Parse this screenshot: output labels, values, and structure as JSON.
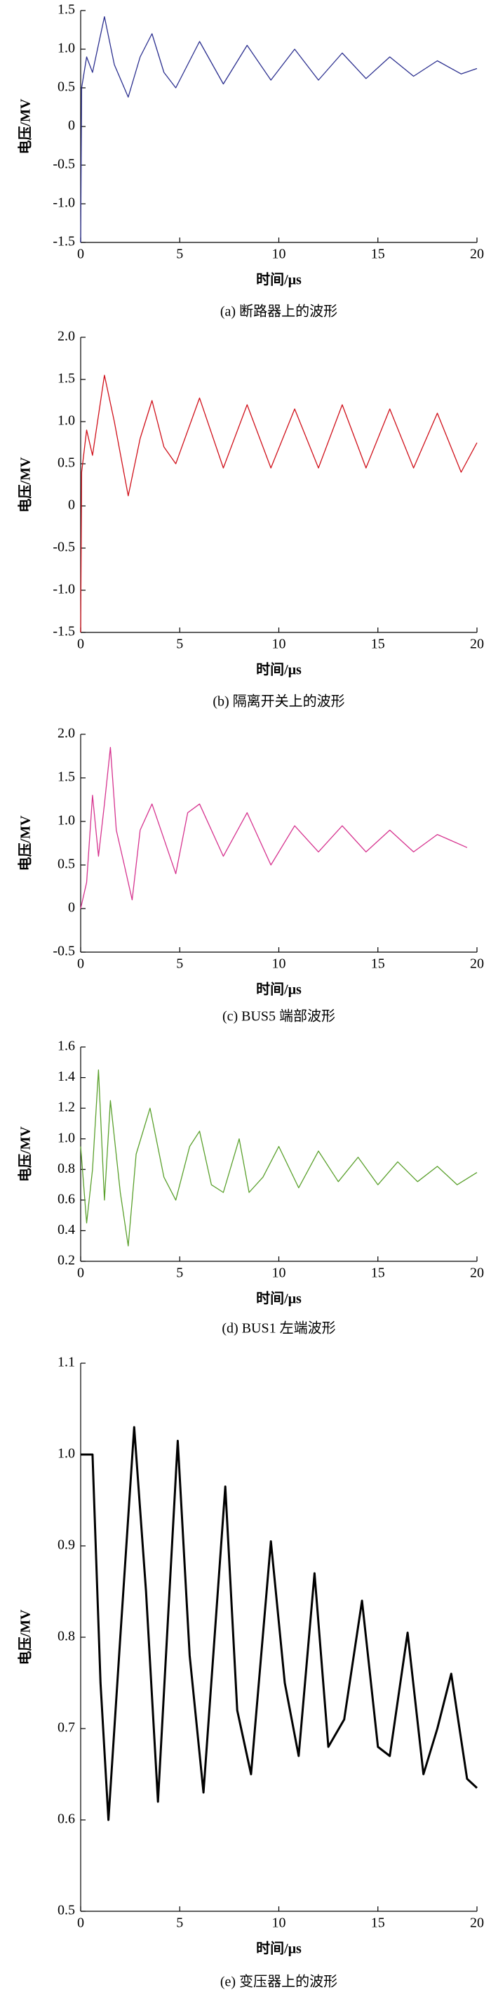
{
  "chart_data": [
    {
      "type": "line",
      "title": "(a) 断路器上的波形",
      "x_label": "时间/μs",
      "y_label": "电压/MV",
      "color": "#2b2f8f",
      "xlim": [
        0,
        20
      ],
      "xticks": [
        0,
        5,
        10,
        15,
        20
      ],
      "ylim": [
        -1.5,
        1.5
      ],
      "yticks": [
        {
          "value": -1.5,
          "label": "-1.5"
        },
        {
          "value": -1.0,
          "label": "-1.0"
        },
        -0.5,
        0,
        0.5,
        {
          "value": 1.0,
          "label": "1.0"
        },
        1.5
      ],
      "x": [
        0,
        0.05,
        0.3,
        0.6,
        1.2,
        1.7,
        2.4,
        3.0,
        3.6,
        4.2,
        4.8,
        6.0,
        7.2,
        8.4,
        9.6,
        10.8,
        12.0,
        13.2,
        14.4,
        15.6,
        16.8,
        18.0,
        19.2,
        20
      ],
      "values": [
        -1.5,
        0.5,
        0.9,
        0.7,
        1.42,
        0.8,
        0.38,
        0.9,
        1.2,
        0.7,
        0.5,
        1.1,
        0.55,
        1.05,
        0.6,
        1.0,
        0.6,
        0.95,
        0.62,
        0.9,
        0.65,
        0.85,
        0.68,
        0.75
      ]
    },
    {
      "type": "line",
      "title": "(b) 隔离开关上的波形",
      "x_label": "时间/μs",
      "y_label": "电压/MV",
      "color": "#d0101a",
      "xlim": [
        0,
        20
      ],
      "xticks": [
        0,
        5,
        10,
        15,
        20
      ],
      "ylim": [
        -1.5,
        2.0
      ],
      "yticks": [
        {
          "value": -1.5,
          "label": "-1.5"
        },
        {
          "value": -1.0,
          "label": "-1.0"
        },
        -0.5,
        0,
        0.5,
        {
          "value": 1.0,
          "label": "1.0"
        },
        1.5,
        {
          "value": 2.0,
          "label": "2.0"
        }
      ],
      "x": [
        0,
        0.05,
        0.3,
        0.6,
        1.2,
        1.7,
        2.4,
        3.0,
        3.6,
        4.2,
        4.8,
        6.0,
        7.2,
        8.4,
        9.6,
        10.8,
        12.0,
        13.2,
        14.4,
        15.6,
        16.8,
        18.0,
        19.2,
        20
      ],
      "values": [
        -1.5,
        0.4,
        0.9,
        0.6,
        1.55,
        1.0,
        0.12,
        0.8,
        1.25,
        0.7,
        0.5,
        1.28,
        0.45,
        1.2,
        0.45,
        1.15,
        0.45,
        1.2,
        0.45,
        1.15,
        0.45,
        1.1,
        0.4,
        0.75
      ]
    },
    {
      "type": "line",
      "title": "(c) BUS5 端部波形",
      "x_label": "时间/μs",
      "y_label": "电压/MV",
      "color": "#d6338f",
      "xlim": [
        0,
        20
      ],
      "xticks": [
        0,
        5,
        10,
        15,
        20
      ],
      "ylim": [
        -0.5,
        2.0
      ],
      "yticks": [
        -0.5,
        0,
        0.5,
        {
          "value": 1.0,
          "label": "1.0"
        },
        1.5,
        {
          "value": 2.0,
          "label": "2.0"
        }
      ],
      "x": [
        0,
        0.3,
        0.6,
        0.9,
        1.2,
        1.5,
        1.8,
        2.2,
        2.6,
        3.0,
        3.6,
        4.2,
        4.8,
        5.4,
        6.0,
        7.2,
        8.4,
        9.6,
        10.8,
        12,
        13.2,
        14.4,
        15.6,
        16.8,
        18,
        19.5
      ],
      "values": [
        0,
        0.3,
        1.3,
        0.6,
        1.2,
        1.85,
        0.9,
        0.5,
        0.1,
        0.9,
        1.2,
        0.8,
        0.4,
        1.1,
        1.2,
        0.6,
        1.1,
        0.5,
        0.95,
        0.65,
        0.95,
        0.65,
        0.9,
        0.65,
        0.85,
        0.7
      ]
    },
    {
      "type": "line",
      "title": "(d) BUS1 左端波形",
      "x_label": "时间/μs",
      "y_label": "电压/MV",
      "color": "#5aa02c",
      "xlim": [
        0,
        20
      ],
      "xticks": [
        0,
        5,
        10,
        15,
        20
      ],
      "ylim": [
        0.2,
        1.6
      ],
      "yticks": [
        0.2,
        0.4,
        0.6,
        0.8,
        {
          "value": 1.0,
          "label": "1.0"
        },
        1.2,
        1.4,
        1.6
      ],
      "x": [
        0,
        0.3,
        0.6,
        0.9,
        1.2,
        1.5,
        2.0,
        2.4,
        2.8,
        3.5,
        4.2,
        4.8,
        5.5,
        6.0,
        6.6,
        7.2,
        8.0,
        8.5,
        9.2,
        10,
        11,
        12,
        13,
        14,
        15,
        16,
        17,
        18,
        19,
        20
      ],
      "values": [
        0.95,
        0.45,
        0.8,
        1.45,
        0.6,
        1.25,
        0.65,
        0.3,
        0.9,
        1.2,
        0.75,
        0.6,
        0.95,
        1.05,
        0.7,
        0.65,
        1.0,
        0.65,
        0.75,
        0.95,
        0.68,
        0.92,
        0.72,
        0.88,
        0.7,
        0.85,
        0.72,
        0.82,
        0.7,
        0.78
      ]
    },
    {
      "type": "line",
      "title": "(e) 变压器上的波形",
      "x_label": "时间/μs",
      "y_label": "电压/MV",
      "color": "#000000",
      "xlim": [
        0,
        20
      ],
      "xticks": [
        0,
        5,
        10,
        15,
        20
      ],
      "ylim": [
        0.5,
        1.1
      ],
      "yticks": [
        0.5,
        0.6,
        0.7,
        0.8,
        0.9,
        {
          "value": 1.0,
          "label": "1.0"
        },
        1.1
      ],
      "x": [
        0,
        0.6,
        1.0,
        1.4,
        2.0,
        2.7,
        3.3,
        3.9,
        4.9,
        5.5,
        6.2,
        7.3,
        7.9,
        8.6,
        9.6,
        10.3,
        11.0,
        11.8,
        12.5,
        13.3,
        14.2,
        15.0,
        15.6,
        16.5,
        17.3,
        18.0,
        18.7,
        19.5,
        20
      ],
      "values": [
        1.0,
        1.0,
        0.75,
        0.6,
        0.8,
        1.03,
        0.85,
        0.62,
        1.015,
        0.78,
        0.63,
        0.965,
        0.72,
        0.65,
        0.905,
        0.75,
        0.67,
        0.87,
        0.68,
        0.71,
        0.84,
        0.68,
        0.67,
        0.805,
        0.65,
        0.7,
        0.76,
        0.645,
        0.635
      ]
    }
  ]
}
